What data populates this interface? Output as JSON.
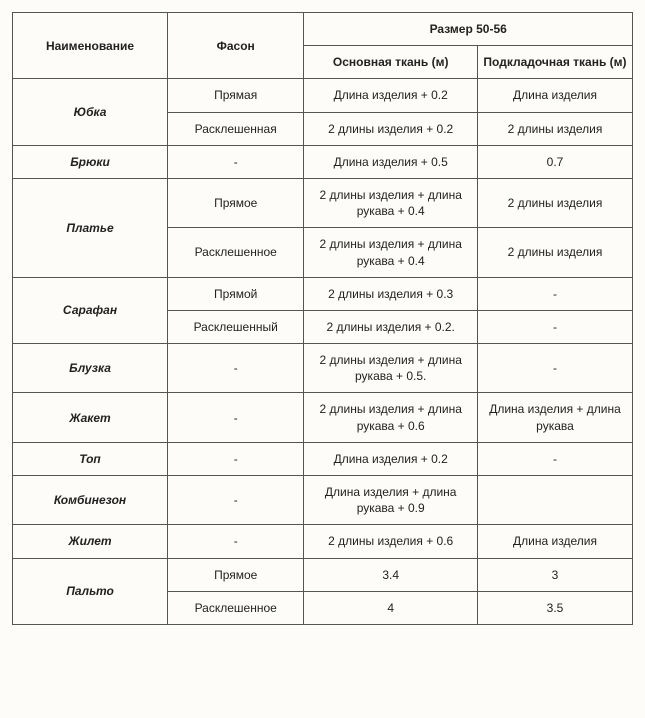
{
  "table": {
    "headers": {
      "name": "Наименование",
      "style": "Фасон",
      "size_group": "Размер 50-56",
      "main_fabric": "Основная ткань (м)",
      "lining_fabric": "Подкладочная ткань (м)"
    },
    "header_fontsize": 12,
    "header_fontweight": "bold",
    "cell_fontsize": 12,
    "item_fontstyle": "italic",
    "item_fontweight": "bold",
    "border_color": "#555555",
    "background_color": "#fdfcf8",
    "text_color": "#222222",
    "column_widths_pct": [
      25,
      22,
      28,
      25
    ],
    "items": [
      {
        "name": "Юбка",
        "variants": [
          {
            "style": "Прямая",
            "main": "Длина изделия + 0.2",
            "lining": "Длина изделия"
          },
          {
            "style": "Расклешенная",
            "main": "2 длины изделия + 0.2",
            "lining": "2 длины изделия"
          }
        ]
      },
      {
        "name": "Брюки",
        "variants": [
          {
            "style": "-",
            "main": "Длина изделия + 0.5",
            "lining": "0.7"
          }
        ]
      },
      {
        "name": "Платье",
        "variants": [
          {
            "style": "Прямое",
            "main": "2 длины изделия + длина рукава + 0.4",
            "lining": "2 длины изделия"
          },
          {
            "style": "Расклешенное",
            "main": "2 длины изделия + длина рукава + 0.4",
            "lining": "2 длины изделия"
          }
        ]
      },
      {
        "name": "Сарафан",
        "variants": [
          {
            "style": "Прямой",
            "main": "2 длины изделия + 0.3",
            "lining": "-"
          },
          {
            "style": "Расклешенный",
            "main": "2 длины изделия + 0.2.",
            "lining": "-"
          }
        ]
      },
      {
        "name": "Блузка",
        "variants": [
          {
            "style": "-",
            "main": "2 длины изделия + длина рукава + 0.5.",
            "lining": "-"
          }
        ]
      },
      {
        "name": "Жакет",
        "variants": [
          {
            "style": "-",
            "main": "2 длины изделия + длина рукава + 0.6",
            "lining": "Длина изделия + длина рукава"
          }
        ]
      },
      {
        "name": "Топ",
        "variants": [
          {
            "style": "-",
            "main": "Длина изделия + 0.2",
            "lining": "-"
          }
        ]
      },
      {
        "name": "Комбинезон",
        "variants": [
          {
            "style": "-",
            "main": "Длина изделия + длина рукава + 0.9",
            "lining": ""
          }
        ]
      },
      {
        "name": "Жилет",
        "variants": [
          {
            "style": "-",
            "main": "2 длины изделия + 0.6",
            "lining": "Длина изделия"
          }
        ]
      },
      {
        "name": "Пальто",
        "variants": [
          {
            "style": "Прямое",
            "main": "3.4",
            "lining": "3"
          },
          {
            "style": "Расклешенное",
            "main": "4",
            "lining": "3.5"
          }
        ]
      }
    ]
  }
}
